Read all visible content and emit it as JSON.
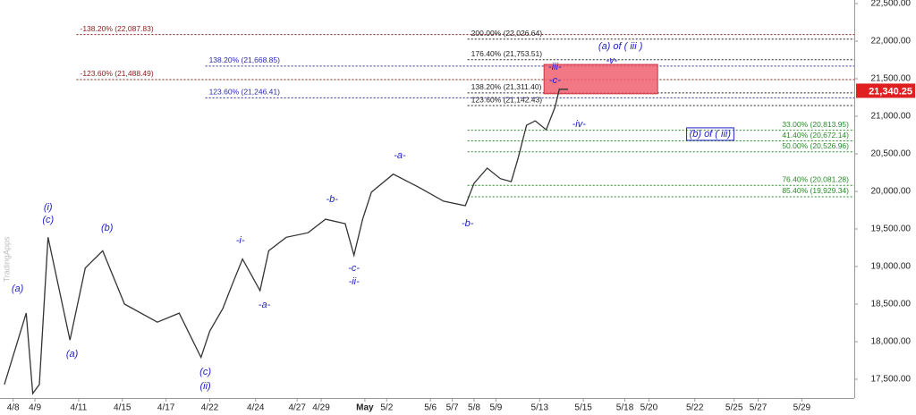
{
  "chart_data": {
    "type": "line",
    "watermark": "TradingApps",
    "xlim": [
      -0.6,
      38.5
    ],
    "ylim": [
      17250,
      22548
    ],
    "xticks": [
      {
        "value": 0,
        "label": "4/8"
      },
      {
        "value": 1.0,
        "label": "4/9"
      },
      {
        "value": 3.0,
        "label": "4/11"
      },
      {
        "value": 5.0,
        "label": "4/15"
      },
      {
        "value": 7.0,
        "label": "4/17"
      },
      {
        "value": 9.0,
        "label": "4/22"
      },
      {
        "value": 11.1,
        "label": "4/24"
      },
      {
        "value": 13.0,
        "label": "4/27"
      },
      {
        "value": 14.1,
        "label": "4/29"
      },
      {
        "value": 16.1,
        "label": "May"
      },
      {
        "value": 17.1,
        "label": "5/2"
      },
      {
        "value": 19.1,
        "label": "5/6"
      },
      {
        "value": 20.1,
        "label": "5/7"
      },
      {
        "value": 21.1,
        "label": "5/8"
      },
      {
        "value": 22.1,
        "label": "5/9"
      },
      {
        "value": 24.1,
        "label": "5/13"
      },
      {
        "value": 26.1,
        "label": "5/15"
      },
      {
        "value": 28.0,
        "label": "5/18"
      },
      {
        "value": 29.1,
        "label": "5/20"
      },
      {
        "value": 31.2,
        "label": "5/22"
      },
      {
        "value": 33.0,
        "label": "5/25"
      },
      {
        "value": 34.1,
        "label": "5/27"
      },
      {
        "value": 36.1,
        "label": "5/29"
      }
    ],
    "yticks": [
      {
        "value": 17500,
        "label": "17,500.00"
      },
      {
        "value": 18000,
        "label": "18,000.00"
      },
      {
        "value": 18500,
        "label": "18,500.00"
      },
      {
        "value": 19000,
        "label": "19,000.00"
      },
      {
        "value": 19500,
        "label": "19,500.00"
      },
      {
        "value": 20000,
        "label": "20,000.00"
      },
      {
        "value": 20500,
        "label": "20,500.00"
      },
      {
        "value": 21000,
        "label": "21,000.00"
      },
      {
        "value": 21500,
        "label": "21,500.00"
      },
      {
        "value": 22000,
        "label": "22,000.00"
      },
      {
        "value": 22500,
        "label": "22,500.00"
      }
    ],
    "series": [
      {
        "color": "#333333",
        "x": [
          -0.4,
          0.6,
          0.9,
          1.2,
          1.6,
          2.6,
          3.3,
          4.1,
          5.1,
          6.6,
          7.6,
          8.6,
          9.0,
          9.6,
          10.0,
          10.5,
          11.3,
          11.7,
          12.5,
          13.5,
          14.3,
          15.2,
          15.6,
          16.0,
          16.4,
          17.4,
          18.6,
          19.7,
          20.7,
          21.1,
          21.7,
          22.3,
          22.8,
          23.1,
          23.5,
          23.9,
          24.4,
          24.8,
          25.0,
          25.4
        ],
        "values": [
          17430,
          18380,
          17310,
          17430,
          19390,
          18020,
          18980,
          19210,
          18500,
          18260,
          18380,
          17790,
          18140,
          18440,
          18740,
          19100,
          18680,
          19210,
          19390,
          19450,
          19630,
          19570,
          19150,
          19630,
          19990,
          20230,
          20050,
          19870,
          19810,
          20110,
          20310,
          20170,
          20130,
          20430,
          20880,
          20940,
          20820,
          21120,
          21360,
          21360
        ]
      }
    ],
    "last_price": {
      "value": 21340.25,
      "label": "21,340.25",
      "color": "#e02020"
    },
    "zone": {
      "x": [
        24.3,
        29.5
      ],
      "y": [
        21300,
        21690
      ],
      "color": "#f06070"
    },
    "level_groups": [
      {
        "color": "#8b1a1a",
        "start": 2.9,
        "align": "start",
        "items": [
          {
            "label": "-138.20% (22,087.83)",
            "value": 22087.83
          },
          {
            "label": "-123.60% (21,488.49)",
            "value": 21488.49
          }
        ]
      },
      {
        "color": "#2a2ab0",
        "start": 8.8,
        "align": "start",
        "items": [
          {
            "label": "138.20% (21,668.85)",
            "value": 21668.85
          },
          {
            "label": "123.60% (21,246.41)",
            "value": 21246.41
          }
        ]
      },
      {
        "color": "#222222",
        "start": 20.8,
        "align": "start",
        "items": [
          {
            "label": "200.00% (22,026.64)",
            "value": 22026.64
          },
          {
            "label": "176.40% (21,753.51)",
            "value": 21753.51
          },
          {
            "label": "138.20% (21,311.40)",
            "value": 21311.4
          },
          {
            "label": "123.60% (21,142.43)",
            "value": 21142.43
          }
        ]
      },
      {
        "color": "#2a8a2a",
        "start": 20.8,
        "align": "end",
        "items": [
          {
            "label": "33.00% (20,813.95)",
            "value": 20813.95
          },
          {
            "label": "41.40% (20,672.14)",
            "value": 20672.14
          },
          {
            "label": "50.00% (20,526.96)",
            "value": 20526.96
          },
          {
            "label": "76.40% (20,081.28)",
            "value": 20081.28
          },
          {
            "label": "85.40% (19,929.34)",
            "value": 19929.34
          }
        ]
      }
    ],
    "annotations": [
      {
        "text": "(a)",
        "x": 0.2,
        "y": 18702
      },
      {
        "text": "(i)",
        "x": 1.6,
        "y": 19786
      },
      {
        "text": "(c)",
        "x": 1.6,
        "y": 19619
      },
      {
        "text": "(a)",
        "x": 2.7,
        "y": 17833
      },
      {
        "text": "(b)",
        "x": 4.3,
        "y": 19512
      },
      {
        "text": "(c)",
        "x": 8.8,
        "y": 17595
      },
      {
        "text": "(ii)",
        "x": 8.8,
        "y": 17405
      },
      {
        "text": "-i-",
        "x": 10.4,
        "y": 19345
      },
      {
        "text": "-a-",
        "x": 11.5,
        "y": 18488
      },
      {
        "text": "-b-",
        "x": 14.6,
        "y": 19893
      },
      {
        "text": "-c-",
        "x": 15.6,
        "y": 18976
      },
      {
        "text": "-ii-",
        "x": 15.6,
        "y": 18798
      },
      {
        "text": "-a-",
        "x": 17.7,
        "y": 20476
      },
      {
        "text": "-b-",
        "x": 20.8,
        "y": 19571
      },
      {
        "text": "-iii-",
        "x": 24.8,
        "y": 21655
      },
      {
        "text": "-c-",
        "x": 24.8,
        "y": 21476
      },
      {
        "text": "-iv-",
        "x": 25.9,
        "y": 20893
      },
      {
        "text": "-v-",
        "x": 27.4,
        "y": 21738
      },
      {
        "text": "(a) of ( iii )",
        "x": 27.8,
        "y": 21929
      },
      {
        "text": "(b) of ( iii)",
        "x": 31.9,
        "y": 20762,
        "boxed": true
      }
    ]
  }
}
